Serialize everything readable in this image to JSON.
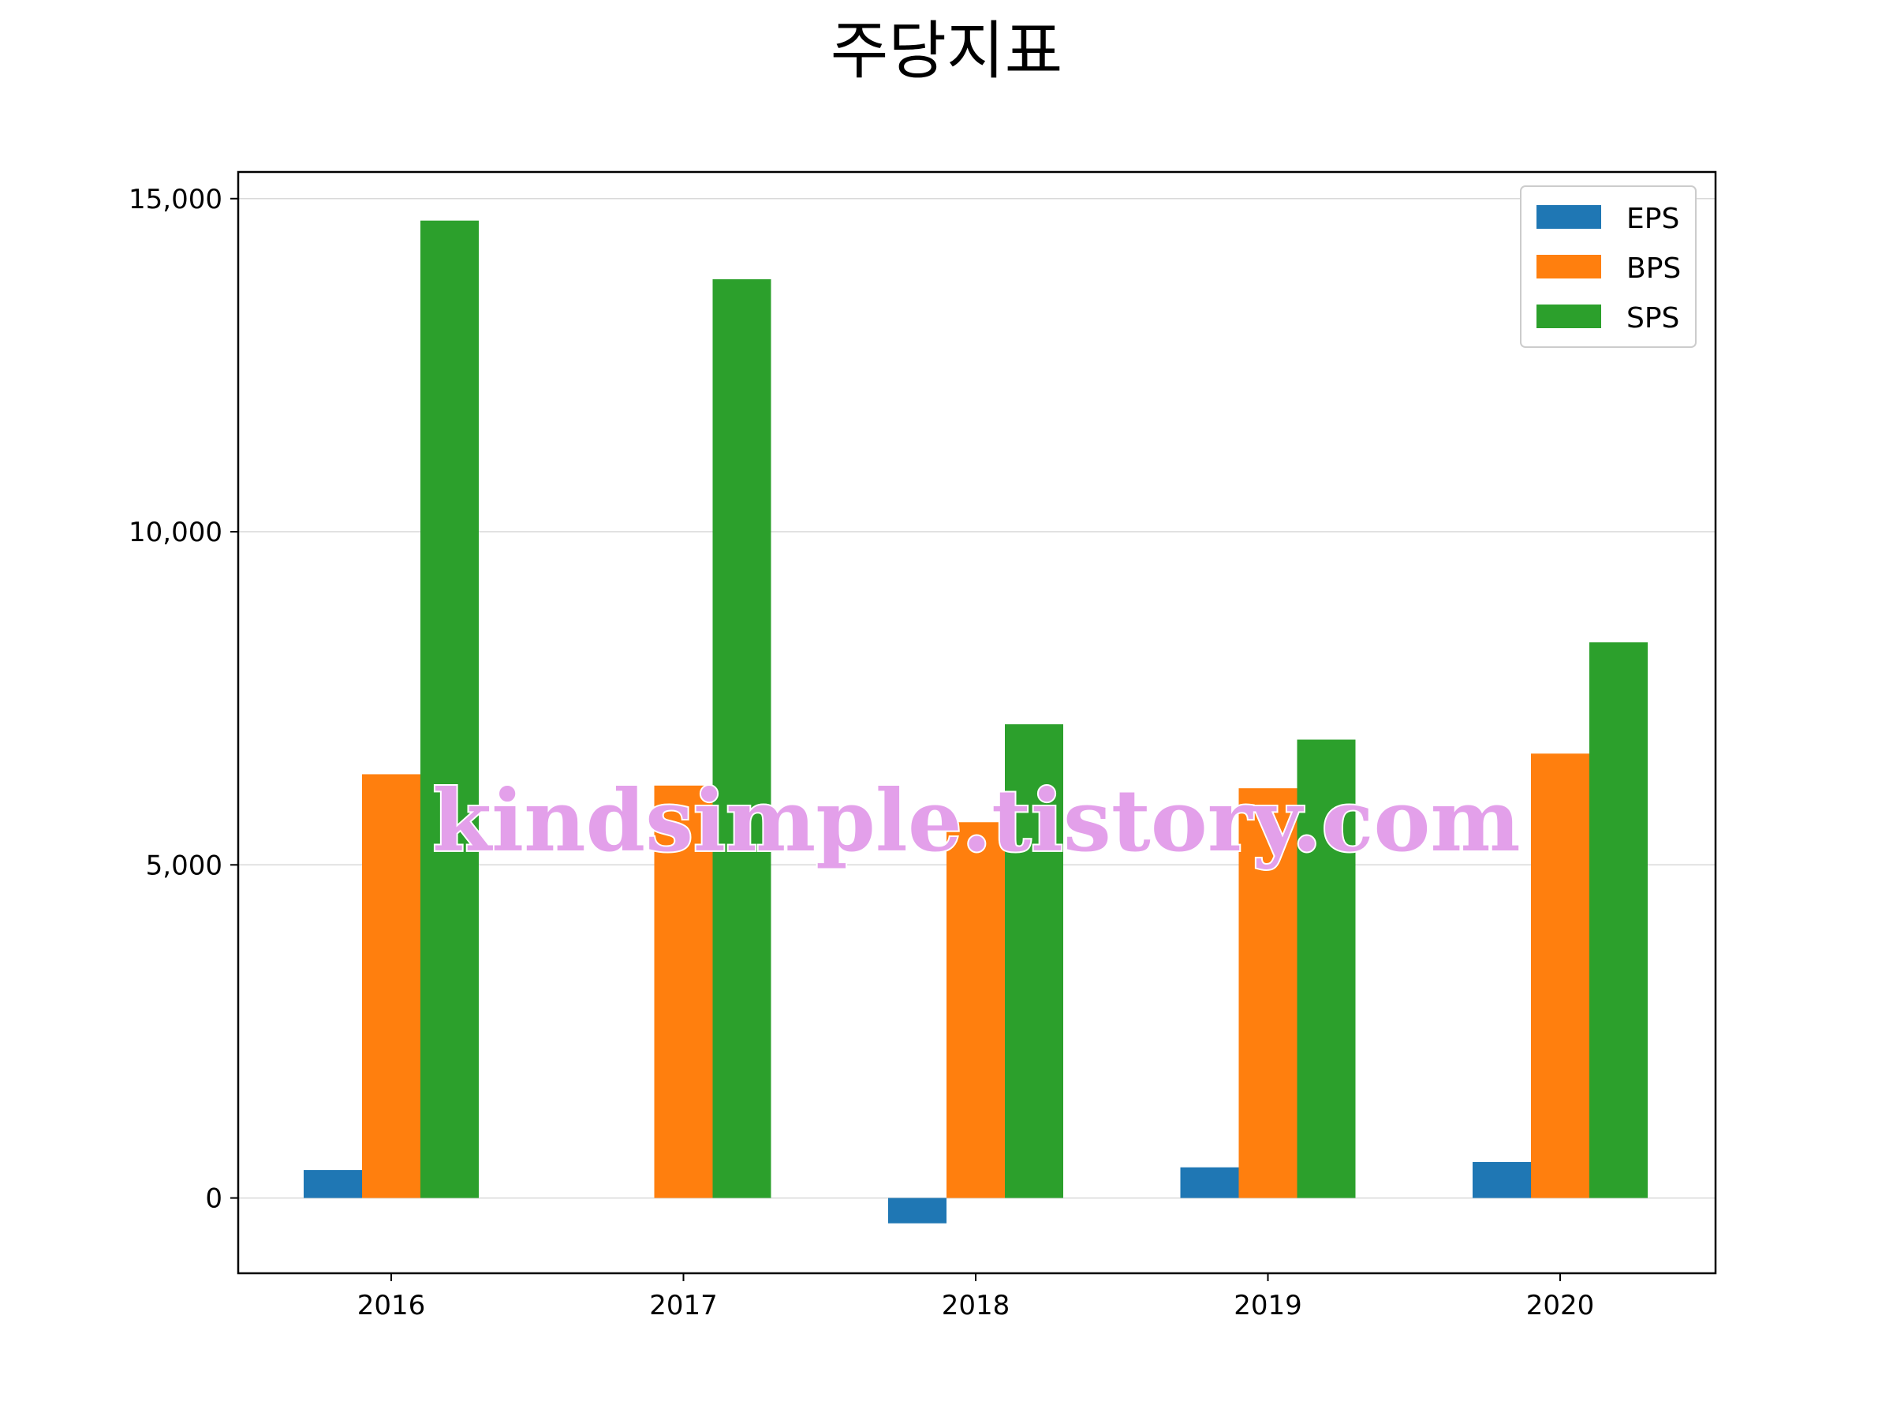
{
  "chart_data": {
    "type": "bar",
    "title": "주당지표",
    "xlabel": "",
    "ylabel": "",
    "categories": [
      "2016",
      "2017",
      "2018",
      "2019",
      "2020"
    ],
    "series": [
      {
        "name": "EPS",
        "color": "#1f77b4",
        "values": [
          420,
          0,
          -380,
          460,
          540
        ]
      },
      {
        "name": "BPS",
        "color": "#ff7f0e",
        "values": [
          6360,
          6190,
          5640,
          6150,
          6670
        ]
      },
      {
        "name": "SPS",
        "color": "#2ca02c",
        "values": [
          14670,
          13790,
          7110,
          6880,
          8340
        ]
      }
    ],
    "ylim": [
      -1130,
      15400
    ],
    "yticks": [
      0,
      5000,
      10000,
      15000
    ],
    "ytick_labels": [
      "0",
      "5,000",
      "10,000",
      "15,000"
    ],
    "grid": "horizontal",
    "legend_position": "top-right",
    "watermark": "kindsimple.tistory.com"
  }
}
